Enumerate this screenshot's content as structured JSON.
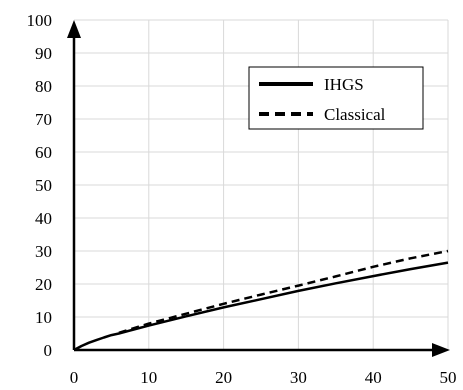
{
  "chart_data": {
    "type": "line",
    "title": "",
    "xlabel": "",
    "ylabel": "",
    "xlim": [
      0,
      50
    ],
    "ylim": [
      0,
      100
    ],
    "xticks": [
      0,
      10,
      20,
      30,
      40,
      50
    ],
    "yticks": [
      0,
      10,
      20,
      30,
      40,
      50,
      60,
      70,
      80,
      90,
      100
    ],
    "xtick_labels": [
      "0",
      "10",
      "20",
      "30",
      "40",
      "50"
    ],
    "ytick_labels": [
      "0",
      "10",
      "20",
      "30",
      "40",
      "50",
      "60",
      "70",
      "80",
      "90",
      "100"
    ],
    "grid": true,
    "legend_position": "top-right",
    "series": [
      {
        "name": "IHGS",
        "style": "solid",
        "color": "#000000",
        "x": [
          0,
          1,
          2,
          3,
          4,
          5,
          6,
          8,
          10,
          15,
          20,
          25,
          30,
          35,
          40,
          45,
          50
        ],
        "y": [
          0,
          1.2,
          2.2,
          3.0,
          3.8,
          4.5,
          5.0,
          6.2,
          7.4,
          10.2,
          12.9,
          15.4,
          17.9,
          20.2,
          22.4,
          24.5,
          26.5
        ]
      },
      {
        "name": "Classical",
        "style": "dashed",
        "color": "#000000",
        "x": [
          6,
          8,
          10,
          15,
          20,
          25,
          30,
          35,
          40,
          45,
          50
        ],
        "y": [
          5.2,
          6.6,
          8.0,
          11.0,
          14.0,
          16.8,
          19.5,
          22.3,
          25.2,
          27.8,
          30.0
        ]
      }
    ]
  }
}
